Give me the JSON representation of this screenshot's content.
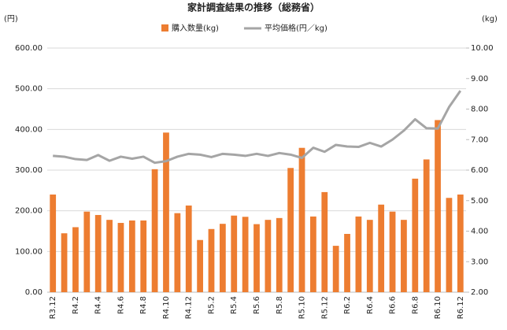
{
  "chart_data": {
    "type": "bar-line",
    "title": "家計調査結果の推移（総務省）",
    "y_label": "(円)",
    "y2_label": "(kg)",
    "categories": [
      "R3.12",
      null,
      "R4.2",
      null,
      "R4.4",
      null,
      "R4.6",
      null,
      "R4.8",
      null,
      "R4.10",
      null,
      "R4.12",
      null,
      "R5.2",
      null,
      "R5.4",
      null,
      "R5.6",
      null,
      "R5.8",
      null,
      "R5.10",
      null,
      "R5.12",
      null,
      "R6.2",
      null,
      "R6.4",
      null,
      "R6.6",
      null,
      "R6.8",
      null,
      "R6.10",
      null,
      "R6.12"
    ],
    "series": [
      {
        "name": "購入数量(kg)",
        "color": "#ed7d31",
        "type": "bar",
        "axis": "y2",
        "values": [
          5.2,
          3.93,
          4.13,
          4.64,
          4.53,
          4.37,
          4.27,
          4.35,
          4.35,
          6.03,
          7.23,
          4.59,
          4.84,
          3.71,
          4.07,
          4.24,
          4.51,
          4.47,
          4.23,
          4.37,
          4.43,
          6.07,
          6.73,
          4.48,
          5.28,
          3.52,
          3.91,
          4.48,
          4.37,
          4.87,
          4.64,
          4.37,
          5.72,
          6.35,
          7.64,
          5.09,
          5.2
        ]
      },
      {
        "name": "平均価格(円／kg)",
        "color": "#a5a5a5",
        "type": "line",
        "values": [
          335,
          333,
          327,
          325,
          337,
          323,
          333,
          328,
          333,
          318,
          322,
          333,
          340,
          338,
          332,
          340,
          338,
          335,
          340,
          335,
          342,
          338,
          330,
          355,
          345,
          362,
          358,
          357,
          367,
          358,
          375,
          397,
          425,
          403,
          402,
          455,
          495
        ]
      }
    ],
    "ylim": [
      0,
      600
    ],
    "yticks": [
      {
        "value": 0,
        "label": "0.00"
      },
      {
        "value": 100,
        "label": "100.00"
      },
      {
        "value": 200,
        "label": "200.00"
      },
      {
        "value": 300,
        "label": "300.00"
      },
      {
        "value": 400,
        "label": "400.00"
      },
      {
        "value": 500,
        "label": "500.00"
      },
      {
        "value": 600,
        "label": "600.00"
      }
    ],
    "y2lim": [
      2,
      10
    ],
    "y2ticks": [
      {
        "value": 2,
        "label": "2.00"
      },
      {
        "value": 3,
        "label": "3.00"
      },
      {
        "value": 4,
        "label": "4.00"
      },
      {
        "value": 5,
        "label": "5.00"
      },
      {
        "value": 6,
        "label": "6.00"
      },
      {
        "value": 7,
        "label": "7.00"
      },
      {
        "value": 8,
        "label": "8.00"
      },
      {
        "value": 9,
        "label": "9.00"
      },
      {
        "value": 10,
        "label": "10.00"
      }
    ],
    "grid": true
  }
}
